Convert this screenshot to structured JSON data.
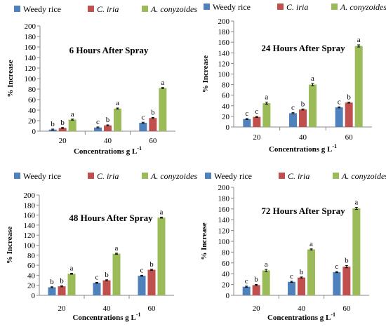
{
  "chart_data": [
    {
      "type": "bar",
      "title": "6 Hours After Spray",
      "xlabel": "Concentrations g L",
      "xlabel_sup": "-1",
      "ylabel": "% Increase",
      "categories": [
        "20",
        "40",
        "60"
      ],
      "ylim": [
        0,
        200
      ],
      "yticks": [
        0,
        20,
        40,
        60,
        80,
        100,
        120,
        140,
        160,
        180,
        200
      ],
      "grid": false,
      "legend": "top",
      "series": [
        {
          "name": "Weedy rice",
          "color": "#4f81bd",
          "values": [
            3,
            7,
            16
          ],
          "errors": [
            1,
            1,
            1
          ],
          "letters": [
            "b",
            "c",
            "c"
          ]
        },
        {
          "name": "C. iria",
          "color": "#c0504d",
          "values": [
            6,
            11,
            25
          ],
          "errors": [
            1,
            1,
            1
          ],
          "letters": [
            "b",
            "b",
            "b"
          ]
        },
        {
          "name": "A. conyzoides",
          "color": "#9bbb59",
          "values": [
            22,
            43,
            82
          ],
          "errors": [
            1,
            1,
            1
          ],
          "letters": [
            "a",
            "a",
            "a"
          ]
        }
      ]
    },
    {
      "type": "bar",
      "title": "24 Hours After Spray",
      "xlabel": "Concentrations g L",
      "xlabel_sup": "-1",
      "ylabel": "% Increase",
      "categories": [
        "20",
        "40",
        "60"
      ],
      "ylim": [
        0,
        200
      ],
      "yticks": [
        0,
        20,
        40,
        60,
        80,
        100,
        120,
        140,
        160,
        180,
        200
      ],
      "grid": false,
      "legend": "top",
      "series": [
        {
          "name": "Weedy rice",
          "color": "#4f81bd",
          "values": [
            15,
            26,
            37
          ],
          "errors": [
            1,
            1,
            1
          ],
          "letters": [
            "c",
            "c",
            "c"
          ]
        },
        {
          "name": "C. iria",
          "color": "#c0504d",
          "values": [
            19,
            33,
            46
          ],
          "errors": [
            1,
            1,
            1
          ],
          "letters": [
            "c",
            "b",
            "b"
          ]
        },
        {
          "name": "A. conyzoides",
          "color": "#9bbb59",
          "values": [
            45,
            80,
            153
          ],
          "errors": [
            2,
            2,
            2
          ],
          "letters": [
            "a",
            "a",
            "a"
          ]
        }
      ]
    },
    {
      "type": "bar",
      "title": "48 Hours After Spray",
      "xlabel": "Concentrations g L",
      "xlabel_sup": "-1",
      "ylabel": "% Increase",
      "categories": [
        "20",
        "40",
        "60"
      ],
      "ylim": [
        0,
        200
      ],
      "yticks": [
        0,
        20,
        40,
        60,
        80,
        100,
        120,
        140,
        160,
        180,
        200
      ],
      "grid": false,
      "legend": "top",
      "series": [
        {
          "name": "Weedy rice",
          "color": "#4f81bd",
          "values": [
            16,
            25,
            39
          ],
          "errors": [
            1,
            1,
            1
          ],
          "letters": [
            "b",
            "c",
            "c"
          ]
        },
        {
          "name": "C. iria",
          "color": "#c0504d",
          "values": [
            18,
            30,
            51
          ],
          "errors": [
            1,
            1,
            1
          ],
          "letters": [
            "b",
            "b",
            "b"
          ]
        },
        {
          "name": "A. conyzoides",
          "color": "#9bbb59",
          "values": [
            43,
            83,
            155
          ],
          "errors": [
            1,
            1,
            1
          ],
          "letters": [
            "a",
            "a",
            "a"
          ]
        }
      ]
    },
    {
      "type": "bar",
      "title": "72 Hours After Spray",
      "xlabel": "Concentrations g L",
      "xlabel_sup": "-1",
      "ylabel": "% Increase",
      "categories": [
        "20",
        "40",
        "60"
      ],
      "ylim": [
        0,
        200
      ],
      "yticks": [
        0,
        20,
        40,
        60,
        80,
        100,
        120,
        140,
        160,
        180,
        200
      ],
      "grid": false,
      "legend": "top",
      "series": [
        {
          "name": "Weedy rice",
          "color": "#4f81bd",
          "values": [
            16,
            25,
            43
          ],
          "errors": [
            1,
            1,
            1
          ],
          "letters": [
            "c",
            "c",
            "c"
          ]
        },
        {
          "name": "C. iria",
          "color": "#c0504d",
          "values": [
            19,
            33,
            53
          ],
          "errors": [
            1,
            1,
            2
          ],
          "letters": [
            "b",
            "b",
            "b"
          ]
        },
        {
          "name": "A. conyzoides",
          "color": "#9bbb59",
          "values": [
            46,
            85,
            161
          ],
          "errors": [
            2,
            1,
            2
          ],
          "letters": [
            "a",
            "a",
            "a"
          ]
        }
      ]
    }
  ]
}
